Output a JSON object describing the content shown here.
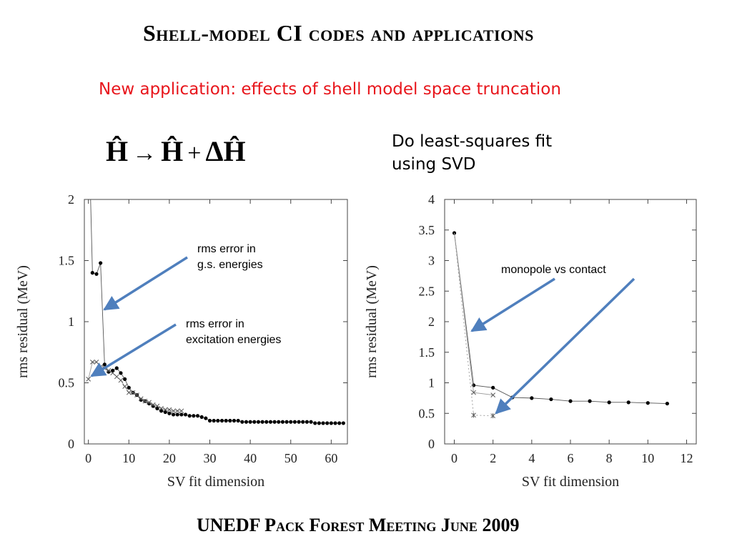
{
  "slide": {
    "title": "Shell-model CI codes and applications",
    "subtitle": "New application: effects of shell model space truncation",
    "formula": {
      "lhs": "Ĥ",
      "arrow": "→",
      "rhs1": "Ĥ",
      "plus": "+",
      "rhs2": "ΔĤ"
    },
    "fit_note_line1": "Do least-squares fit",
    "fit_note_line2": "using SVD",
    "footer": "UNEDF Pack Forest Meeting June 2009"
  },
  "colors": {
    "accent": "#e8161c",
    "arrow": "#4f7fbd"
  },
  "chart_data": [
    {
      "type": "line",
      "xlabel": "SV fit dimension",
      "ylabel": "rms residual (MeV)",
      "xlim": [
        -1,
        64
      ],
      "ylim": [
        0,
        2
      ],
      "xticks": [
        0,
        10,
        20,
        30,
        40,
        50,
        60
      ],
      "yticks": [
        0,
        0.5,
        1,
        1.5,
        2
      ],
      "ytick_labels": [
        "0",
        "0.5",
        "1",
        "1.5",
        "2"
      ],
      "series": [
        {
          "marker": "dot",
          "x": [
            1,
            2,
            3,
            4,
            5,
            6,
            7,
            8,
            9,
            10,
            11,
            12,
            13,
            14,
            15,
            16,
            17,
            18,
            19,
            20,
            21,
            22,
            23,
            24,
            25,
            26,
            27,
            28,
            29,
            30,
            31,
            32,
            33,
            34,
            35,
            36,
            37,
            38,
            39,
            40,
            41,
            42,
            43,
            44,
            45,
            46,
            47,
            48,
            49,
            50,
            51,
            52,
            53,
            54,
            55,
            56,
            57,
            58,
            59,
            60,
            61,
            62,
            63
          ],
          "y": [
            1.4,
            1.39,
            1.48,
            0.65,
            0.59,
            0.6,
            0.62,
            0.58,
            0.53,
            0.46,
            0.42,
            0.4,
            0.36,
            0.35,
            0.33,
            0.31,
            0.29,
            0.27,
            0.26,
            0.25,
            0.24,
            0.24,
            0.24,
            0.24,
            0.23,
            0.23,
            0.23,
            0.22,
            0.21,
            0.19,
            0.19,
            0.19,
            0.19,
            0.19,
            0.19,
            0.19,
            0.19,
            0.18,
            0.18,
            0.18,
            0.18,
            0.18,
            0.18,
            0.18,
            0.18,
            0.18,
            0.18,
            0.18,
            0.18,
            0.18,
            0.18,
            0.18,
            0.18,
            0.18,
            0.18,
            0.17,
            0.17,
            0.17,
            0.17,
            0.17,
            0.17,
            0.17,
            0.17
          ]
        },
        {
          "marker": "cross",
          "x": [
            0,
            1,
            2,
            3,
            4,
            5,
            6,
            7,
            8,
            9,
            10,
            11,
            12,
            13,
            14,
            15,
            16,
            17,
            18,
            19,
            20,
            21,
            22,
            23
          ],
          "y": [
            0.53,
            0.67,
            0.67,
            0.63,
            0.62,
            0.6,
            0.58,
            0.55,
            0.52,
            0.47,
            0.42,
            0.42,
            0.4,
            0.37,
            0.35,
            0.34,
            0.32,
            0.31,
            0.29,
            0.28,
            0.28,
            0.27,
            0.27,
            0.27
          ]
        }
      ],
      "annotations": [
        {
          "line1": "rms error in",
          "line2": "g.s. energies"
        },
        {
          "line1": "rms error in",
          "line2": "excitation energies"
        }
      ]
    },
    {
      "type": "line",
      "xlabel": "SV fit dimension",
      "ylabel": "rms residual (MeV)",
      "xlim": [
        -0.5,
        12.5
      ],
      "ylim": [
        0,
        4
      ],
      "xticks": [
        0,
        2,
        4,
        6,
        8,
        10,
        12
      ],
      "yticks": [
        0,
        0.5,
        1,
        1.5,
        2,
        2.5,
        3,
        3.5,
        4
      ],
      "ytick_labels": [
        "0",
        "0.5",
        "1",
        "1.5",
        "2",
        "2.5",
        "3",
        "3.5",
        "4"
      ],
      "series": [
        {
          "marker": "dot",
          "x": [
            0,
            1,
            2,
            3,
            4,
            5,
            6,
            7,
            8,
            9,
            10,
            11
          ],
          "y": [
            3.45,
            0.96,
            0.92,
            0.76,
            0.75,
            0.73,
            0.7,
            0.7,
            0.68,
            0.68,
            0.67,
            0.66
          ]
        },
        {
          "marker": "cross",
          "x": [
            1,
            2
          ],
          "y": [
            0.84,
            0.8
          ]
        },
        {
          "marker": "star",
          "x": [
            1,
            2
          ],
          "y": [
            0.47,
            0.46
          ]
        }
      ],
      "annotations": [
        {
          "line1": "monopole vs  contact"
        }
      ]
    }
  ]
}
